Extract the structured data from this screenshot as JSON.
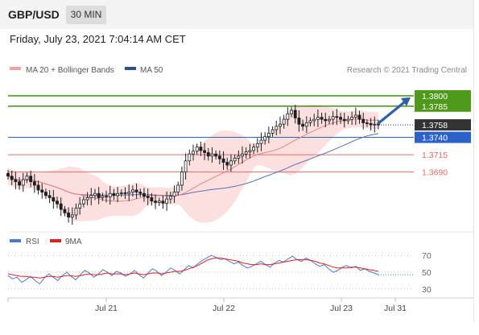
{
  "header": {
    "symbol": "GBP/USD",
    "timeframe": "30 MIN",
    "datetime": "Friday, July 23, 2021 7:04:14 AM CET"
  },
  "legend": {
    "ma20_label": "MA 20 + Bollinger Bands",
    "ma50_label": "MA 50",
    "credit": "Research © 2021 Trading Central",
    "rsi_label": "RSI",
    "rsi_ma_label": "9MA"
  },
  "colors": {
    "candle": "#1f1f1f",
    "band_fill": "#fbd9d9",
    "ma20": "#f08080",
    "ma50": "#5a6fb5",
    "resistance": "#4f9a1b",
    "support_blue": "#2a62c9",
    "support_red": "#e26b6b",
    "current_price_bg": "#333333",
    "arrow": "#2e5fa8",
    "rsi": "#4a7ad0",
    "rsi_ma": "#e02020"
  },
  "chart_data": [
    {
      "type": "candlestick",
      "title": "GBP/USD",
      "timeframe": "30 MIN",
      "x_tick_labels": [
        "Jul 21",
        "Jul 22",
        "Jul 23",
        "Jul 31"
      ],
      "price_range": [
        1.3607,
        1.3822
      ],
      "current_price": 1.3758,
      "levels": [
        {
          "value": 1.38,
          "label": "1.3800",
          "kind": "resistance",
          "color": "#4f9a1b"
        },
        {
          "value": 1.3785,
          "label": "1.3785",
          "kind": "resistance",
          "color": "#4f9a1b"
        },
        {
          "value": 1.374,
          "label": "1.3740",
          "kind": "support",
          "color": "#2a62c9"
        },
        {
          "value": 1.3715,
          "label": "1.3715",
          "kind": "support",
          "color": "#e26b6b"
        },
        {
          "value": 1.369,
          "label": "1.3690",
          "kind": "support",
          "color": "#e26b6b"
        }
      ],
      "close_series": [
        1.3684,
        1.3679,
        1.3676,
        1.3671,
        1.3679,
        1.3684,
        1.3676,
        1.3671,
        1.3664,
        1.3661,
        1.3656,
        1.3653,
        1.3648,
        1.3644,
        1.3636,
        1.3631,
        1.3625,
        1.3628,
        1.3638,
        1.3644,
        1.365,
        1.3653,
        1.3656,
        1.3659,
        1.3653,
        1.3655,
        1.3654,
        1.3659,
        1.3656,
        1.3659,
        1.366,
        1.3659,
        1.3661,
        1.3664,
        1.3661,
        1.3659,
        1.3655,
        1.3653,
        1.3648,
        1.3646,
        1.3648,
        1.3645,
        1.3651,
        1.3655,
        1.3661,
        1.3671,
        1.369,
        1.3706,
        1.3716,
        1.372,
        1.3726,
        1.3721,
        1.3718,
        1.3713,
        1.3716,
        1.3713,
        1.3709,
        1.3704,
        1.37,
        1.3706,
        1.371,
        1.3713,
        1.3716,
        1.3719,
        1.3721,
        1.3726,
        1.3731,
        1.3736,
        1.3741,
        1.3746,
        1.3751,
        1.3756,
        1.3759,
        1.3766,
        1.3774,
        1.3779,
        1.3768,
        1.3759,
        1.3756,
        1.3761,
        1.3764,
        1.3766,
        1.3769,
        1.3766,
        1.3764,
        1.3766,
        1.377,
        1.3769,
        1.3766,
        1.3764,
        1.3766,
        1.3769,
        1.3772,
        1.3766,
        1.3761,
        1.376,
        1.3758,
        1.3759,
        1.3758
      ],
      "ma20_note": "MA 20 with Bollinger Bands overlay",
      "forecast_arrow": {
        "from": 1.3758,
        "to": 1.38,
        "direction": "up"
      }
    },
    {
      "type": "line",
      "title": "RSI",
      "series": [
        {
          "name": "RSI",
          "color": "#4a7ad0"
        },
        {
          "name": "9MA",
          "color": "#e02020"
        }
      ],
      "ylim": [
        25,
        75
      ],
      "y_tick_labels": [
        "70",
        "50",
        "30"
      ],
      "rsi_values": [
        46,
        42,
        44,
        38,
        41,
        45,
        40,
        36,
        43,
        48,
        44,
        40,
        46,
        50,
        45,
        41,
        47,
        52,
        49,
        44,
        48,
        53,
        50,
        46,
        51,
        49,
        45,
        48,
        52,
        47,
        43,
        49,
        54,
        51,
        46,
        50,
        55,
        52,
        48,
        53,
        58,
        55,
        60,
        64,
        67,
        70,
        68,
        65,
        66,
        63,
        60,
        62,
        58,
        55,
        57,
        60,
        63,
        59,
        56,
        61,
        64,
        62,
        66,
        69,
        65,
        63,
        67,
        64,
        60,
        57,
        59,
        54,
        50,
        52,
        56,
        58,
        55,
        57,
        52,
        54,
        51,
        49,
        47
      ],
      "rsi_ma_values": [
        48,
        47,
        46,
        45,
        45,
        44,
        44,
        43,
        44,
        45,
        45,
        44,
        45,
        46,
        46,
        45,
        46,
        47,
        48,
        47,
        47,
        48,
        49,
        48,
        48,
        48,
        47,
        48,
        49,
        48,
        47,
        48,
        49,
        49,
        48,
        49,
        50,
        51,
        51,
        52,
        54,
        56,
        58,
        61,
        64,
        66,
        67,
        67,
        66,
        65,
        64,
        63,
        61,
        60,
        59,
        59,
        60,
        59,
        59,
        60,
        61,
        62,
        63,
        64,
        65,
        65,
        65,
        64,
        63,
        61,
        60,
        58,
        56,
        55,
        55,
        55,
        56,
        56,
        55,
        54,
        53,
        52,
        51
      ]
    }
  ]
}
